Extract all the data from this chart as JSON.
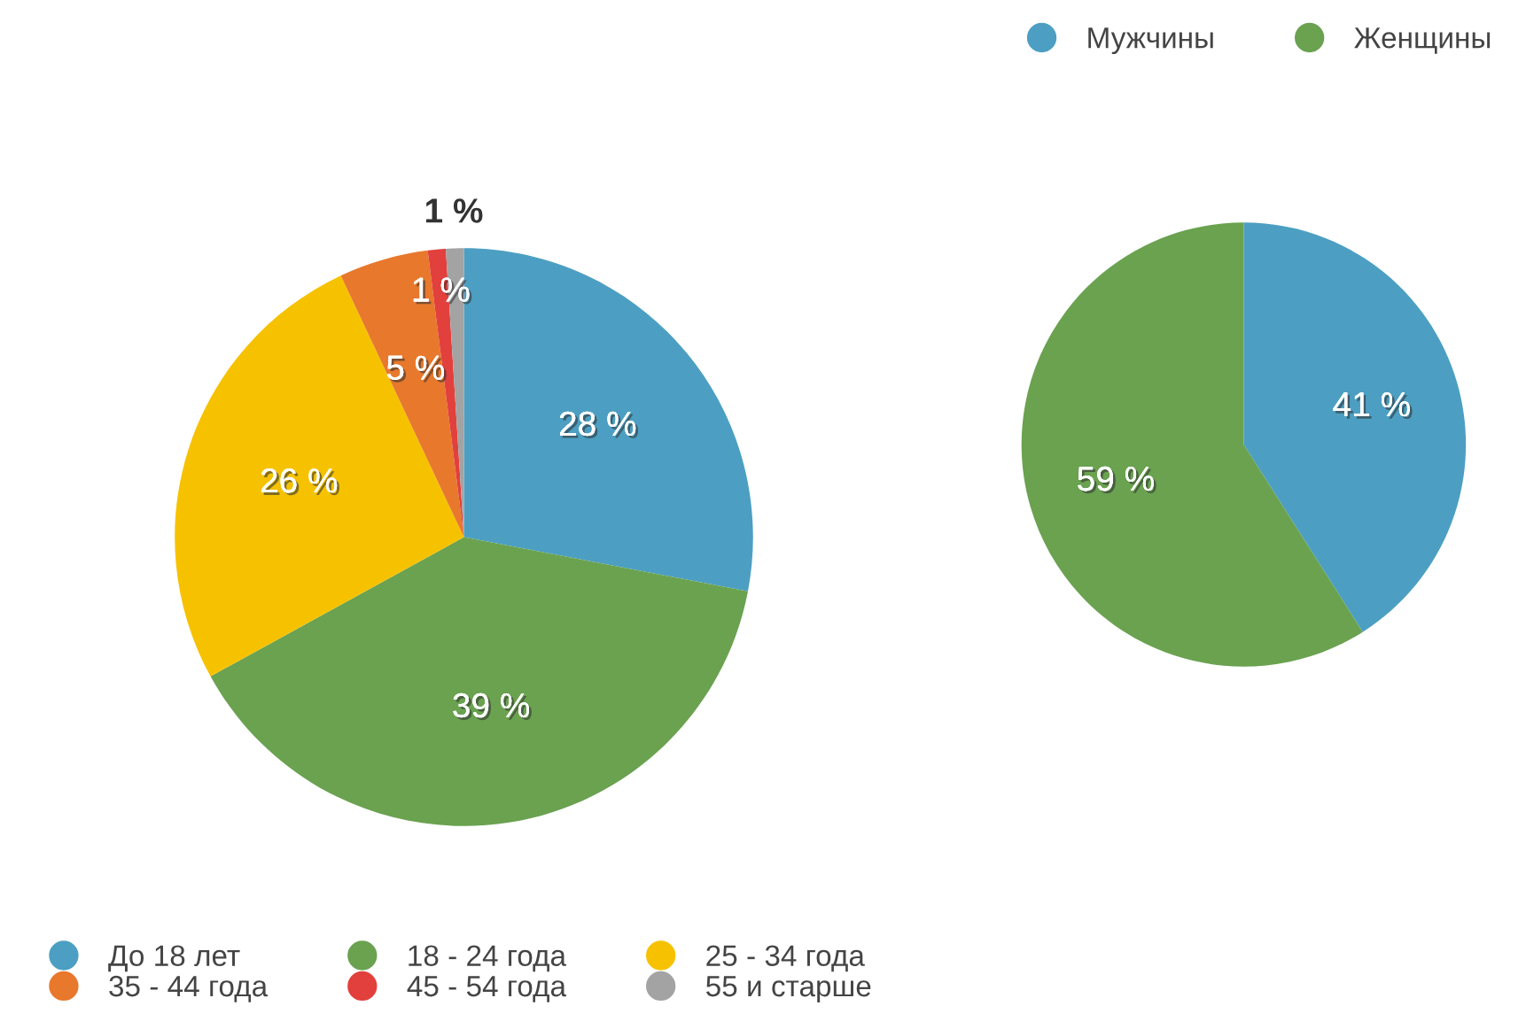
{
  "chart_data": [
    {
      "type": "pie",
      "categories": [
        "До 18 лет",
        "18 - 24 года",
        "25 - 34 года",
        "35 - 44 года",
        "45 - 54 года",
        "55 и старше"
      ],
      "values": [
        28,
        39,
        26,
        5,
        1,
        1
      ],
      "value_labels": [
        "28 %",
        "39 %",
        "26 %",
        "5 %",
        "1 %",
        "1 %"
      ],
      "colors": [
        "#4c9fc2",
        "#6aa250",
        "#f6c200",
        "#e8782c",
        "#e2403c",
        "#a3a3a3"
      ],
      "legend": "bottom"
    },
    {
      "type": "pie",
      "categories": [
        "Мужчины",
        "Женщины"
      ],
      "values": [
        41,
        59
      ],
      "value_labels": [
        "41 %",
        "59 %"
      ],
      "colors": [
        "#4c9fc2",
        "#6aa250"
      ],
      "legend": "top"
    }
  ]
}
